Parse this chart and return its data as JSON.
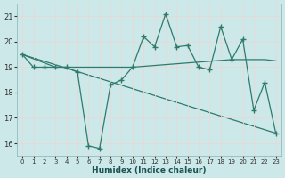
{
  "xlabel": "Humidex (Indice chaleur)",
  "xlim": [
    -0.5,
    23.5
  ],
  "ylim": [
    15.5,
    21.5
  ],
  "yticks": [
    16,
    17,
    18,
    19,
    20,
    21
  ],
  "xticks": [
    0,
    1,
    2,
    3,
    4,
    5,
    6,
    7,
    8,
    9,
    10,
    11,
    12,
    13,
    14,
    15,
    16,
    17,
    18,
    19,
    20,
    21,
    22,
    23
  ],
  "bg_color": "#cce8e8",
  "grid_color": "#d0d8d0",
  "line_color": "#2e7b6e",
  "line1": {
    "x": [
      0,
      1,
      2,
      3,
      4,
      5,
      6,
      7,
      8,
      9,
      10,
      11,
      12,
      13,
      14,
      15,
      16,
      17,
      18,
      19,
      20,
      21,
      22,
      23
    ],
    "y": [
      19.5,
      19.0,
      19.0,
      19.0,
      19.0,
      18.8,
      15.9,
      15.8,
      18.3,
      18.5,
      19.0,
      20.2,
      19.8,
      21.1,
      19.8,
      19.85,
      19.0,
      18.9,
      20.6,
      19.3,
      20.1,
      17.3,
      18.4,
      16.4
    ]
  },
  "line2": {
    "x": [
      0,
      3,
      10,
      19,
      22,
      23
    ],
    "y": [
      19.5,
      19.0,
      19.0,
      19.3,
      19.3,
      19.25
    ]
  },
  "line3": {
    "x": [
      0,
      23
    ],
    "y": [
      19.5,
      16.4
    ]
  }
}
